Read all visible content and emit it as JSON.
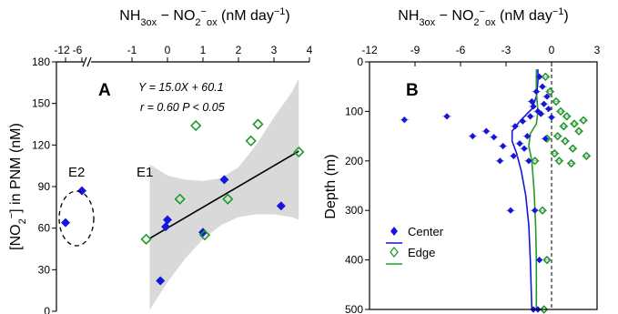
{
  "chart_data": [
    {
      "panel": "A",
      "type": "scatter",
      "panel_label": "A",
      "xlabel": "NH3ox − NO2−ox (nM day−1)",
      "ylabel": "[NO2−] in PNM (nM)",
      "xlim": [
        -1,
        4
      ],
      "ylim": [
        0,
        180
      ],
      "broken_x_axis": true,
      "x_break_ticks": [
        "-12",
        "-6"
      ],
      "x_ticks": [
        -1,
        0,
        1,
        2,
        3,
        4
      ],
      "y_ticks": [
        0,
        30,
        60,
        90,
        120,
        150,
        180
      ],
      "grid": false,
      "equation": "Y = 15.0X + 60.1",
      "stats": "r = 0.60  P < 0.05",
      "group_labels": [
        "E2",
        "E1"
      ],
      "fit_line": {
        "slope": 15.0,
        "intercept": 60.1,
        "x_range": [
          -0.5,
          3.7
        ]
      },
      "confidence_band": {
        "x": [
          -0.5,
          0.0,
          0.5,
          1.0,
          1.5,
          2.0,
          2.5,
          3.0,
          3.5,
          3.7
        ],
        "lower": [
          1,
          21,
          38,
          52,
          62,
          68,
          70,
          70,
          68,
          66
        ],
        "upper": [
          106,
          98,
          95,
          94,
          96,
          104,
          120,
          140,
          158,
          168
        ]
      },
      "series": [
        {
          "marker": "filled-diamond",
          "color": "#1515dd",
          "points": [
            [
              -0.2,
              22
            ],
            [
              -0.05,
              61
            ],
            [
              0.0,
              66
            ],
            [
              1.0,
              57
            ],
            [
              1.6,
              95
            ],
            [
              3.2,
              76
            ]
          ]
        },
        {
          "marker": "open-diamond",
          "color": "#1f9a2a",
          "points": [
            [
              -0.6,
              52
            ],
            [
              0.35,
              81
            ],
            [
              0.8,
              134
            ],
            [
              1.05,
              55
            ],
            [
              1.7,
              81
            ],
            [
              2.35,
              123
            ],
            [
              2.55,
              135
            ],
            [
              3.7,
              115
            ]
          ]
        },
        {
          "marker": "filled-diamond",
          "color": "#1515dd",
          "break_region": true,
          "points": [
            [
              "-12",
              64
            ],
            [
              "-6",
              87
            ]
          ]
        }
      ]
    },
    {
      "panel": "B",
      "type": "scatter",
      "panel_label": "B",
      "xlabel": "NH3ox − NO2−ox (nM day−1)",
      "ylabel": "Depth (m)",
      "xlim": [
        -12,
        3
      ],
      "ylim": [
        500,
        0
      ],
      "x_ticks": [
        -12,
        -9,
        -6,
        -3,
        0,
        3
      ],
      "y_ticks": [
        0,
        100,
        200,
        300,
        400,
        500
      ],
      "grid": false,
      "reference_line_x": 0,
      "legend": [
        "Center",
        "Edge"
      ],
      "legend_position": "bottom-left",
      "series": [
        {
          "name": "Center",
          "marker": "filled-diamond",
          "color": "#1515dd",
          "points": [
            [
              -0.8,
              30
            ],
            [
              -0.6,
              50
            ],
            [
              -1.0,
              60
            ],
            [
              -0.3,
              70
            ],
            [
              -1.3,
              80
            ],
            [
              -0.5,
              85
            ],
            [
              -1.2,
              90
            ],
            [
              -0.2,
              95
            ],
            [
              -0.9,
              100
            ],
            [
              -0.7,
              105
            ],
            [
              -1.4,
              110
            ],
            [
              0.0,
              112
            ],
            [
              -9.7,
              117
            ],
            [
              -6.9,
              110
            ],
            [
              -1.9,
              120
            ],
            [
              -2.4,
              130
            ],
            [
              -4.3,
              140
            ],
            [
              -5.2,
              150
            ],
            [
              -3.8,
              152
            ],
            [
              -1.6,
              150
            ],
            [
              -0.4,
              155
            ],
            [
              -2.1,
              165
            ],
            [
              -3.2,
              170
            ],
            [
              -1.8,
              175
            ],
            [
              -2.5,
              190
            ],
            [
              -3.4,
              200
            ],
            [
              -1.5,
              200
            ],
            [
              -2.7,
              300
            ],
            [
              -1.1,
              300
            ],
            [
              -0.8,
              400
            ],
            [
              -1.2,
              500
            ],
            [
              -0.9,
              500
            ]
          ]
        },
        {
          "name": "Edge",
          "marker": "open-diamond",
          "color": "#1f9a2a",
          "points": [
            [
              -0.4,
              30
            ],
            [
              -0.1,
              60
            ],
            [
              0.3,
              80
            ],
            [
              0.6,
              100
            ],
            [
              1.0,
              110
            ],
            [
              2.1,
              118
            ],
            [
              1.5,
              125
            ],
            [
              0.8,
              130
            ],
            [
              1.8,
              140
            ],
            [
              0.4,
              150
            ],
            [
              -0.3,
              155
            ],
            [
              0.9,
              160
            ],
            [
              1.4,
              175
            ],
            [
              0.2,
              185
            ],
            [
              2.3,
              190
            ],
            [
              -1.1,
              200
            ],
            [
              0.5,
              200
            ],
            [
              1.3,
              205
            ],
            [
              -0.6,
              300
            ],
            [
              -0.3,
              400
            ],
            [
              -0.5,
              500
            ]
          ]
        }
      ],
      "fit_curves": [
        {
          "name": "Center",
          "color": "#1515dd",
          "points": [
            [
              -0.9,
              15
            ],
            [
              -0.9,
              40
            ],
            [
              -1.0,
              70
            ],
            [
              -1.3,
              95
            ],
            [
              -2.1,
              120
            ],
            [
              -2.6,
              140
            ],
            [
              -2.6,
              160
            ],
            [
              -2.3,
              185
            ],
            [
              -2.0,
              220
            ],
            [
              -1.7,
              270
            ],
            [
              -1.5,
              330
            ],
            [
              -1.4,
              400
            ],
            [
              -1.3,
              500
            ]
          ]
        },
        {
          "name": "Edge",
          "color": "#1f9a2a",
          "points": [
            [
              -1.0,
              15
            ],
            [
              -1.0,
              60
            ],
            [
              -0.9,
              100
            ],
            [
              -1.0,
              125
            ],
            [
              -1.4,
              145
            ],
            [
              -1.5,
              170
            ],
            [
              -1.3,
              200
            ],
            [
              -1.15,
              260
            ],
            [
              -1.05,
              330
            ],
            [
              -1.0,
              400
            ],
            [
              -1.0,
              500
            ]
          ]
        }
      ]
    }
  ]
}
